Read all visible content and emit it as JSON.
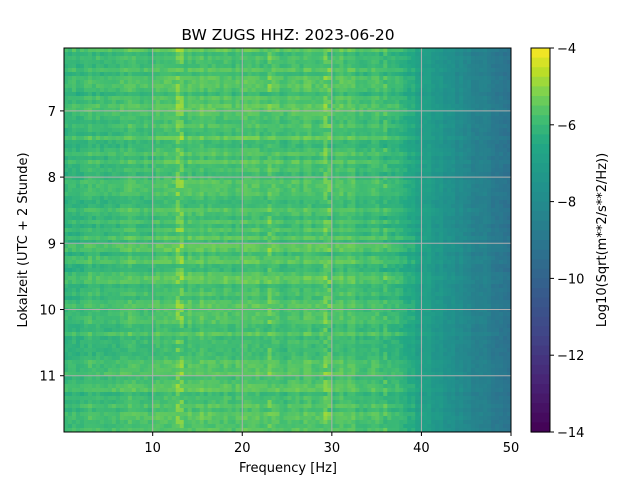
{
  "chart_data": {
    "type": "heatmap",
    "title": "BW ZUGS  HHZ: 2023-06-20",
    "xlabel": "Frequency [Hz]",
    "ylabel": "Lokalzeit (UTC + 2 Stunde)",
    "colorbar_label": "Log10(Sqrt(m**2/s**2/Hz))",
    "xlim": [
      0.1,
      50
    ],
    "ylim": [
      6.05,
      11.85
    ],
    "y_inverted": true,
    "x_ticks": [
      "10",
      "20",
      "30",
      "40",
      "50"
    ],
    "x_tick_values": [
      10,
      20,
      30,
      40,
      50
    ],
    "y_ticks": [
      "7",
      "8",
      "9",
      "10",
      "11"
    ],
    "y_tick_values": [
      7,
      8,
      9,
      10,
      11
    ],
    "colorbar_range": [
      -14,
      -4
    ],
    "colorbar_ticks": [
      "−4",
      "−6",
      "−8",
      "−10",
      "−12",
      "−14"
    ],
    "colorbar_tick_values": [
      -4,
      -6,
      -8,
      -10,
      -12,
      -14
    ],
    "colormap": "viridis",
    "grid": true,
    "frequency_profile": {
      "frequency_hz": [
        0,
        5,
        10,
        15,
        20,
        25,
        30,
        35,
        38,
        40,
        42,
        44,
        46,
        48,
        50
      ],
      "log10_amplitude": [
        -6.1,
        -5.8,
        -5.8,
        -5.7,
        -5.7,
        -5.8,
        -5.7,
        -5.9,
        -6.2,
        -6.8,
        -7.4,
        -7.9,
        -8.4,
        -8.8,
        -9.3
      ]
    },
    "highlight_lines_hz": [
      13,
      23,
      29.5,
      36
    ]
  }
}
